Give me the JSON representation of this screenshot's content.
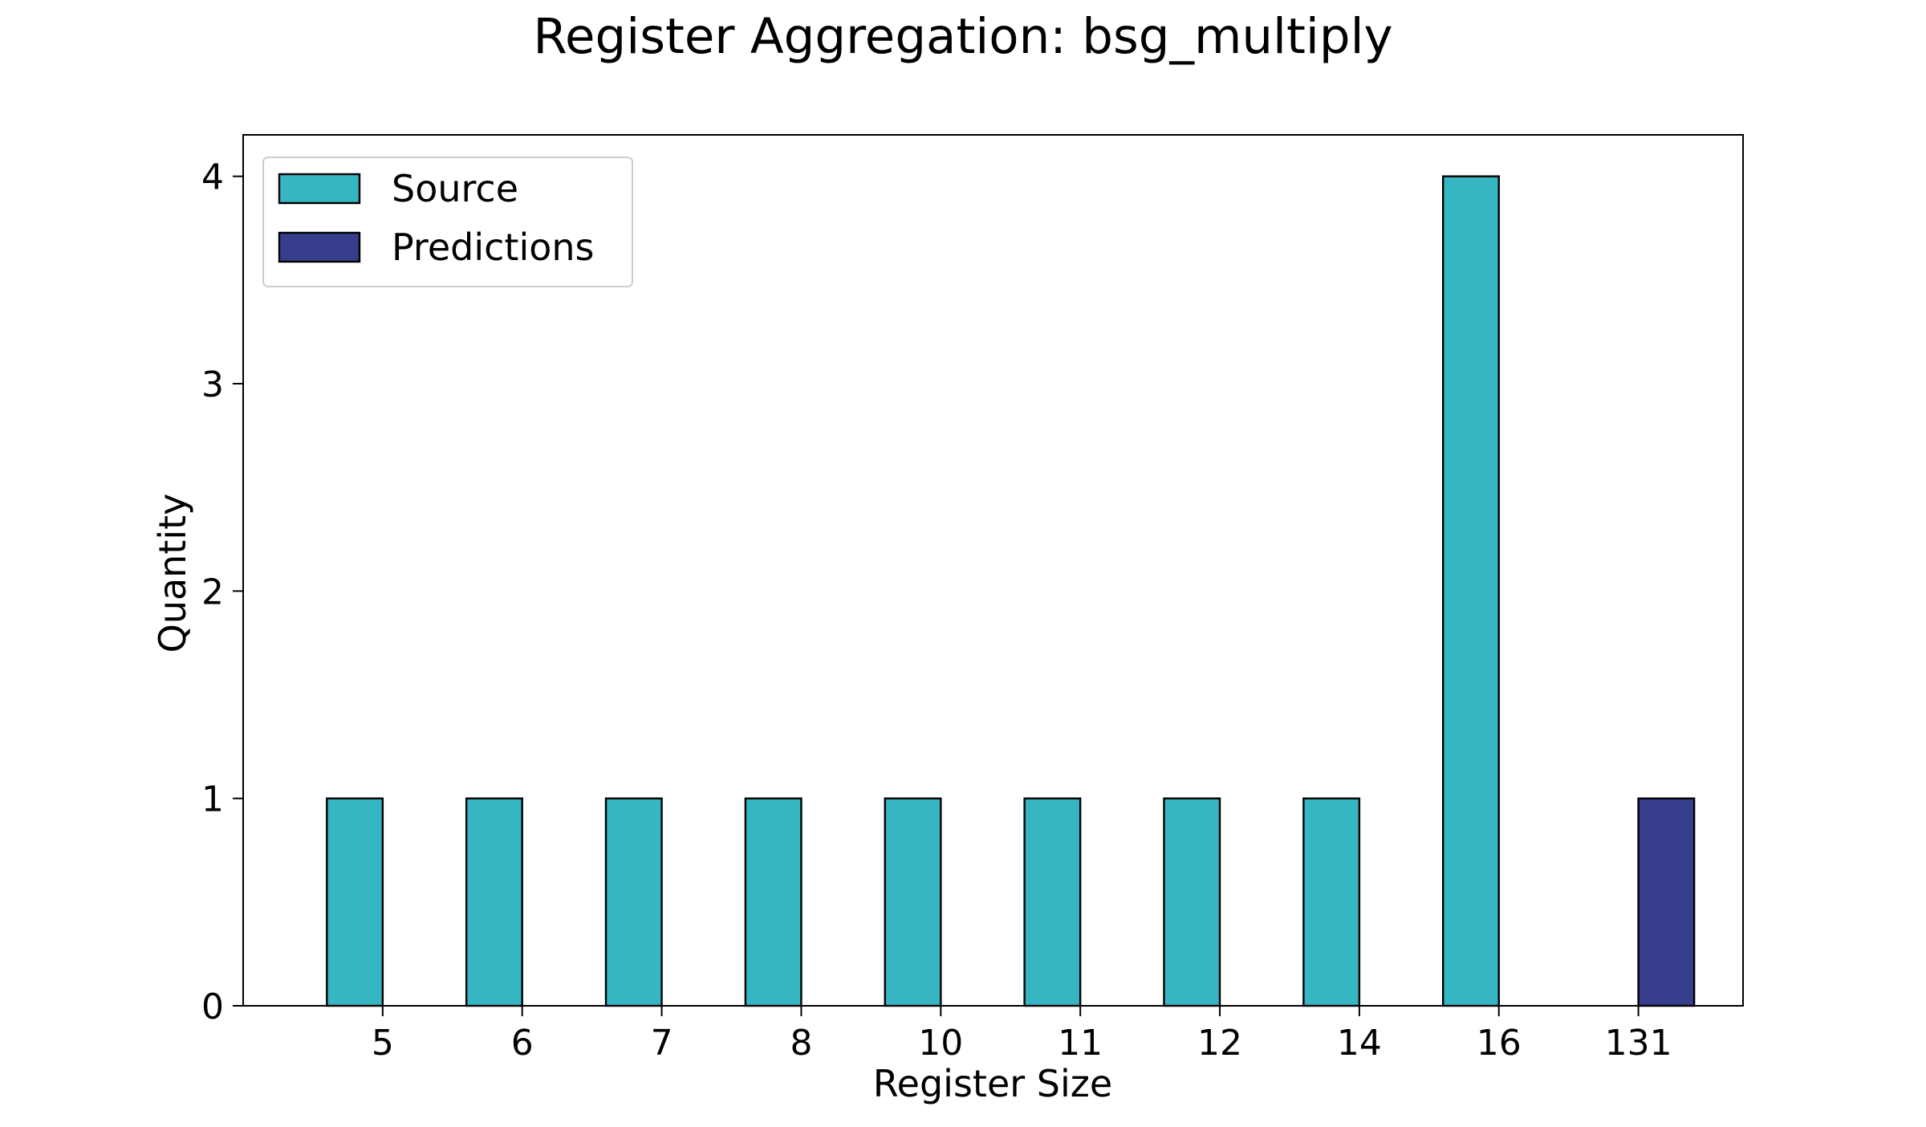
{
  "chart_data": {
    "type": "bar",
    "title": "Register Aggregation: bsg_multiply",
    "xlabel": "Register Size",
    "ylabel": "Quantity",
    "categories": [
      "5",
      "6",
      "7",
      "8",
      "10",
      "11",
      "12",
      "14",
      "16",
      "131"
    ],
    "series": [
      {
        "name": "Source",
        "color": "#36b5c2",
        "values": [
          1,
          1,
          1,
          1,
          1,
          1,
          1,
          1,
          4,
          0
        ]
      },
      {
        "name": "Predictions",
        "color": "#363e8c",
        "values": [
          0,
          0,
          0,
          0,
          0,
          0,
          0,
          0,
          0,
          1
        ]
      }
    ],
    "ylim": [
      0,
      4.2
    ],
    "yticks": [
      0,
      1,
      2,
      3,
      4
    ],
    "grid": false,
    "legend_position": "upper left"
  }
}
